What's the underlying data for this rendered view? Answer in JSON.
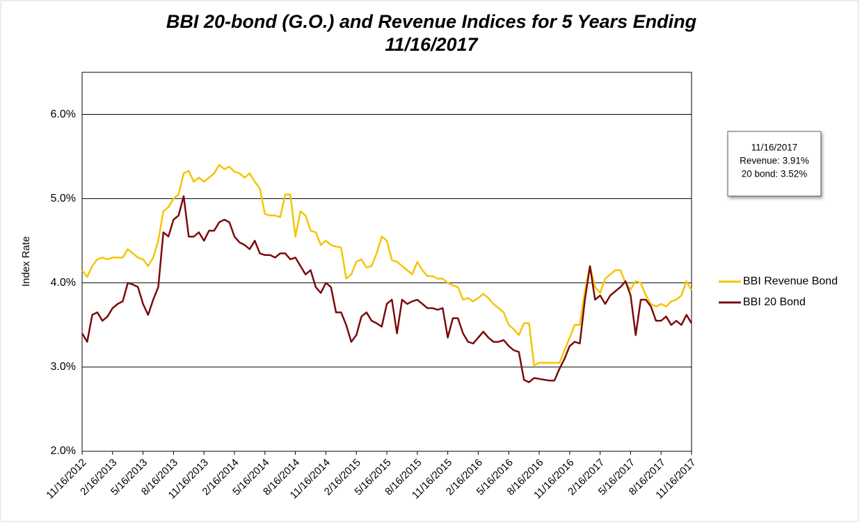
{
  "chart_data": {
    "type": "line",
    "title": [
      "BBI 20-bond (G.O.) and Revenue Indices for 5 Years Ending",
      "11/16/2017"
    ],
    "y_label": "Index Rate",
    "categories": [
      "11/16/2012",
      null,
      null,
      null,
      null,
      null,
      "2/16/2013",
      null,
      null,
      null,
      null,
      null,
      "5/16/2013",
      null,
      null,
      null,
      null,
      null,
      "8/16/2013",
      null,
      null,
      null,
      null,
      null,
      "11/16/2013",
      null,
      null,
      null,
      null,
      null,
      "2/16/2014",
      null,
      null,
      null,
      null,
      null,
      "5/16/2014",
      null,
      null,
      null,
      null,
      null,
      "8/16/2014",
      null,
      null,
      null,
      null,
      null,
      "11/16/2014",
      null,
      null,
      null,
      null,
      null,
      "2/16/2015",
      null,
      null,
      null,
      null,
      null,
      "5/16/2015",
      null,
      null,
      null,
      null,
      null,
      "8/16/2015",
      null,
      null,
      null,
      null,
      null,
      "11/16/2015",
      null,
      null,
      null,
      null,
      null,
      "2/16/2016",
      null,
      null,
      null,
      null,
      null,
      "5/16/2016",
      null,
      null,
      null,
      null,
      null,
      "8/16/2016",
      null,
      null,
      null,
      null,
      null,
      "11/16/2016",
      null,
      null,
      null,
      null,
      null,
      "2/16/2017",
      null,
      null,
      null,
      null,
      null,
      "5/16/2017",
      null,
      null,
      null,
      null,
      null,
      "8/16/2017",
      null,
      null,
      null,
      null,
      null,
      "11/16/2017"
    ],
    "series": [
      {
        "name": "BBI Revenue Bond",
        "color": "#f5c400",
        "values": [
          4.15,
          4.07,
          4.2,
          4.28,
          4.3,
          4.28,
          4.3,
          4.3,
          4.3,
          4.4,
          4.35,
          4.3,
          4.28,
          4.2,
          4.3,
          4.5,
          4.85,
          4.9,
          5.0,
          5.05,
          5.3,
          5.33,
          5.2,
          5.25,
          5.2,
          5.25,
          5.3,
          5.4,
          5.35,
          5.38,
          5.32,
          5.3,
          5.25,
          5.3,
          5.2,
          5.12,
          4.82,
          4.8,
          4.8,
          4.78,
          5.05,
          5.05,
          4.55,
          4.85,
          4.8,
          4.62,
          4.6,
          4.45,
          4.5,
          4.45,
          4.43,
          4.42,
          4.05,
          4.1,
          4.25,
          4.28,
          4.18,
          4.2,
          4.35,
          4.55,
          4.5,
          4.27,
          4.25,
          4.2,
          4.15,
          4.1,
          4.25,
          4.15,
          4.08,
          4.08,
          4.05,
          4.05,
          4.0,
          3.97,
          3.95,
          3.8,
          3.82,
          3.78,
          3.82,
          3.87,
          3.82,
          3.75,
          3.7,
          3.65,
          3.5,
          3.45,
          3.38,
          3.52,
          3.52,
          3.02,
          3.05,
          3.05,
          3.05,
          3.05,
          3.05,
          3.2,
          3.35,
          3.5,
          3.5,
          3.9,
          4.2,
          3.95,
          3.88,
          4.05,
          4.1,
          4.15,
          4.15,
          4.0,
          3.92,
          4.02,
          4.0,
          3.85,
          3.75,
          3.72,
          3.75,
          3.72,
          3.78,
          3.8,
          3.85,
          4.02,
          3.91
        ]
      },
      {
        "name": "BBI 20 Bond",
        "color": "#7b0a0a",
        "values": [
          3.4,
          3.3,
          3.62,
          3.65,
          3.55,
          3.6,
          3.7,
          3.75,
          3.78,
          4.0,
          3.98,
          3.95,
          3.75,
          3.62,
          3.8,
          3.95,
          4.6,
          4.55,
          4.75,
          4.8,
          5.03,
          4.55,
          4.55,
          4.6,
          4.5,
          4.62,
          4.62,
          4.72,
          4.75,
          4.72,
          4.55,
          4.48,
          4.45,
          4.4,
          4.5,
          4.35,
          4.33,
          4.33,
          4.3,
          4.35,
          4.35,
          4.28,
          4.3,
          4.2,
          4.1,
          4.15,
          3.95,
          3.88,
          4.0,
          3.95,
          3.65,
          3.65,
          3.5,
          3.3,
          3.38,
          3.6,
          3.65,
          3.55,
          3.52,
          3.48,
          3.75,
          3.8,
          3.4,
          3.8,
          3.75,
          3.78,
          3.8,
          3.75,
          3.7,
          3.7,
          3.68,
          3.7,
          3.35,
          3.58,
          3.58,
          3.4,
          3.3,
          3.28,
          3.35,
          3.42,
          3.35,
          3.3,
          3.3,
          3.32,
          3.25,
          3.2,
          3.18,
          2.85,
          2.82,
          2.87,
          2.86,
          2.85,
          2.84,
          2.84,
          2.98,
          3.1,
          3.25,
          3.3,
          3.28,
          3.8,
          4.2,
          3.8,
          3.85,
          3.75,
          3.85,
          3.9,
          3.95,
          4.02,
          3.85,
          3.38,
          3.8,
          3.8,
          3.72,
          3.55,
          3.55,
          3.6,
          3.5,
          3.55,
          3.5,
          3.62,
          3.52
        ]
      }
    ],
    "ylim": [
      2,
      6.5
    ],
    "yticks": [
      {
        "value": 2,
        "label": "2.0%"
      },
      {
        "value": 3,
        "label": "3.0%"
      },
      {
        "value": 4,
        "label": "4.0%"
      },
      {
        "value": 5,
        "label": "5.0%"
      },
      {
        "value": 6,
        "label": "6.0%"
      }
    ],
    "grid": true,
    "legend": "right",
    "annotation": [
      "11/16/2017",
      "Revenue: 3.91%",
      "20 bond: 3.52%"
    ]
  }
}
